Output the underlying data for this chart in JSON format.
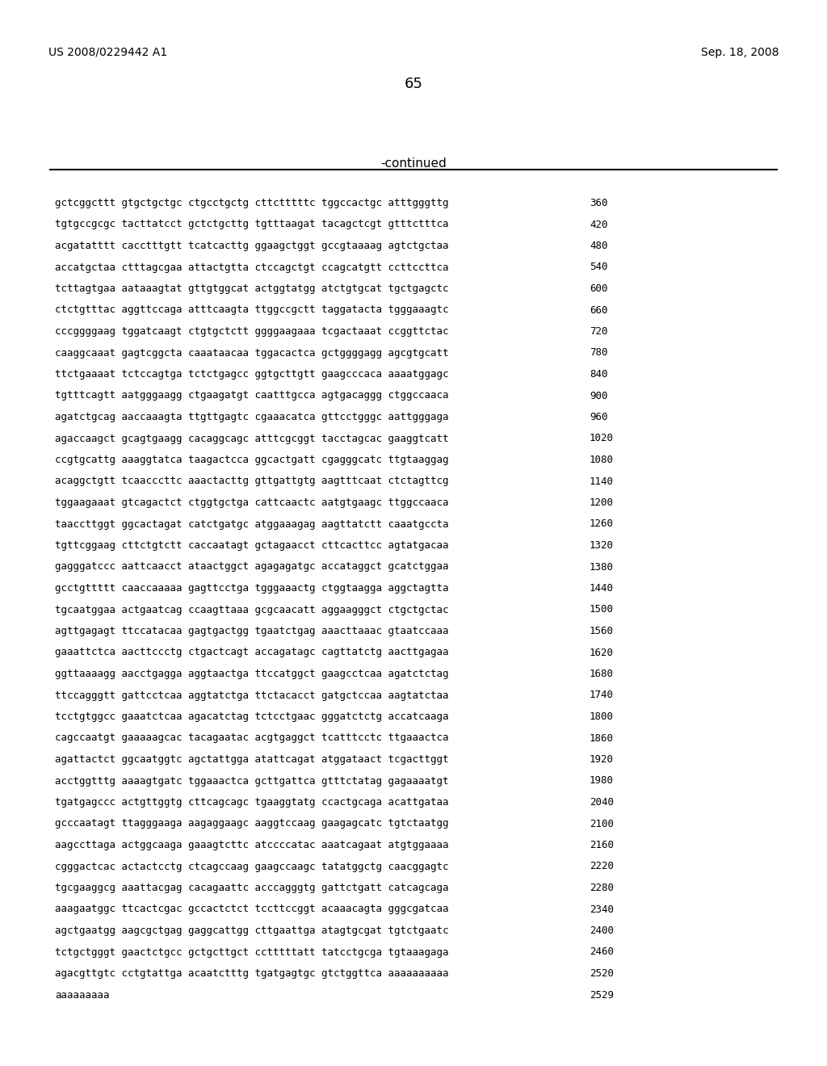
{
  "header_left": "US 2008/0229442 A1",
  "header_right": "Sep. 18, 2008",
  "page_number": "65",
  "continued_label": "-continued",
  "background_color": "#ffffff",
  "text_color": "#000000",
  "sequence_lines": [
    {
      "seq": "gctcggcttt gtgctgctgc ctgcctgctg cttctttttc tggccactgc atttgggttg",
      "num": "360"
    },
    {
      "seq": "tgtgccgcgc tacttatcct gctctgcttg tgtttaagat tacagctcgt gtttctttca",
      "num": "420"
    },
    {
      "seq": "acgatatttt cacctttgtt tcatcacttg ggaagctggt gccgtaaaag agtctgctaa",
      "num": "480"
    },
    {
      "seq": "accatgctaa ctttagcgaa attactgtta ctccagctgt ccagcatgtt ccttccttca",
      "num": "540"
    },
    {
      "seq": "tcttagtgaa aataaagtat gttgtggcat actggtatgg atctgtgcat tgctgagctc",
      "num": "600"
    },
    {
      "seq": "ctctgtttac aggttccaga atttcaagta ttggccgctt taggatacta tgggaaagtc",
      "num": "660"
    },
    {
      "seq": "cccggggaag tggatcaagt ctgtgctctt ggggaagaaa tcgactaaat ccggttctac",
      "num": "720"
    },
    {
      "seq": "caaggcaaat gagtcggcta caaataacaa tggacactca gctggggagg agcgtgcatt",
      "num": "780"
    },
    {
      "seq": "ttctgaaaat tctccagtga tctctgagcc ggtgcttgtt gaagcccaca aaaatggagc",
      "num": "840"
    },
    {
      "seq": "tgtttcagtt aatgggaagg ctgaagatgt caatttgcca agtgacaggg ctggccaaca",
      "num": "900"
    },
    {
      "seq": "agatctgcag aaccaaagta ttgttgagtc cgaaacatca gttcctgggc aattgggaga",
      "num": "960"
    },
    {
      "seq": "agaccaagct gcagtgaagg cacaggcagc atttcgcggt tacctagcac gaaggtcatt",
      "num": "1020"
    },
    {
      "seq": "ccgtgcattg aaaggtatca taagactcca ggcactgatt cgagggcatc ttgtaaggag",
      "num": "1080"
    },
    {
      "seq": "acaggctgtt tcaacccttc aaactacttg gttgattgtg aagtttcaat ctctagttcg",
      "num": "1140"
    },
    {
      "seq": "tggaagaaat gtcagactct ctggtgctga cattcaactc aatgtgaagc ttggccaaca",
      "num": "1200"
    },
    {
      "seq": "taaccttggt ggcactagat catctgatgc atggaaagag aagttatctt caaatgccta",
      "num": "1260"
    },
    {
      "seq": "tgttcggaag cttctgtctt caccaatagt gctagaacct cttcacttcc agtatgacaa",
      "num": "1320"
    },
    {
      "seq": "gagggatccc aattcaacct ataactggct agagagatgc accataggct gcatctggaa",
      "num": "1380"
    },
    {
      "seq": "gcctgttttt caaccaaaaa gagttcctga tgggaaactg ctggtaagga aggctagtta",
      "num": "1440"
    },
    {
      "seq": "tgcaatggaa actgaatcag ccaagttaaa gcgcaacatt aggaagggct ctgctgctac",
      "num": "1500"
    },
    {
      "seq": "agttgagagt ttccatacaa gagtgactgg tgaatctgag aaacttaaac gtaatccaaa",
      "num": "1560"
    },
    {
      "seq": "gaaattctca aacttccctg ctgactcagt accagatagc cagttatctg aacttgagaa",
      "num": "1620"
    },
    {
      "seq": "ggttaaaagg aacctgagga aggtaactga ttccatggct gaagcctcaa agatctctag",
      "num": "1680"
    },
    {
      "seq": "ttccagggtt gattcctcaa aggtatctga ttctacacct gatgctccaa aagtatctaa",
      "num": "1740"
    },
    {
      "seq": "tcctgtggcc gaaatctcaa agacatctag tctcctgaac gggatctctg accatcaaga",
      "num": "1800"
    },
    {
      "seq": "cagccaatgt gaaaaagcac tacagaatac acgtgaggct tcatttcctc ttgaaactca",
      "num": "1860"
    },
    {
      "seq": "agattactct ggcaatggtc agctattgga atattcagat atggataact tcgacttggt",
      "num": "1920"
    },
    {
      "seq": "acctggtttg aaaagtgatc tggaaactca gcttgattca gtttctatag gagaaaatgt",
      "num": "1980"
    },
    {
      "seq": "tgatgagccc actgttggtg cttcagcagc tgaaggtatg ccactgcaga acattgataa",
      "num": "2040"
    },
    {
      "seq": "gcccaatagt ttagggaaga aagaggaagc aaggtccaag gaagagcatc tgtctaatgg",
      "num": "2100"
    },
    {
      "seq": "aagccttaga actggcaaga gaaagtcttc atccccatac aaatcagaat atgtggaaaa",
      "num": "2160"
    },
    {
      "seq": "cgggactcac actactcctg ctcagccaag gaagccaagc tatatggctg caacggagtc",
      "num": "2220"
    },
    {
      "seq": "tgcgaaggcg aaattacgag cacagaattc acccagggtg gattctgatt catcagcaga",
      "num": "2280"
    },
    {
      "seq": "aaagaatggc ttcactcgac gccactctct tccttccggt acaaacagta gggcgatcaa",
      "num": "2340"
    },
    {
      "seq": "agctgaatgg aagcgctgag gaggcattgg cttgaattga atagtgcgat tgtctgaatc",
      "num": "2400"
    },
    {
      "seq": "tctgctgggt gaactctgcc gctgcttgct cctttttatt tatcctgcga tgtaaagaga",
      "num": "2460"
    },
    {
      "seq": "agacgttgtc cctgtattga acaatctttg tgatgagtgc gtctggttca aaaaaaaaaa",
      "num": "2520"
    },
    {
      "seq": "aaaaaaaaa",
      "num": "2529"
    }
  ]
}
